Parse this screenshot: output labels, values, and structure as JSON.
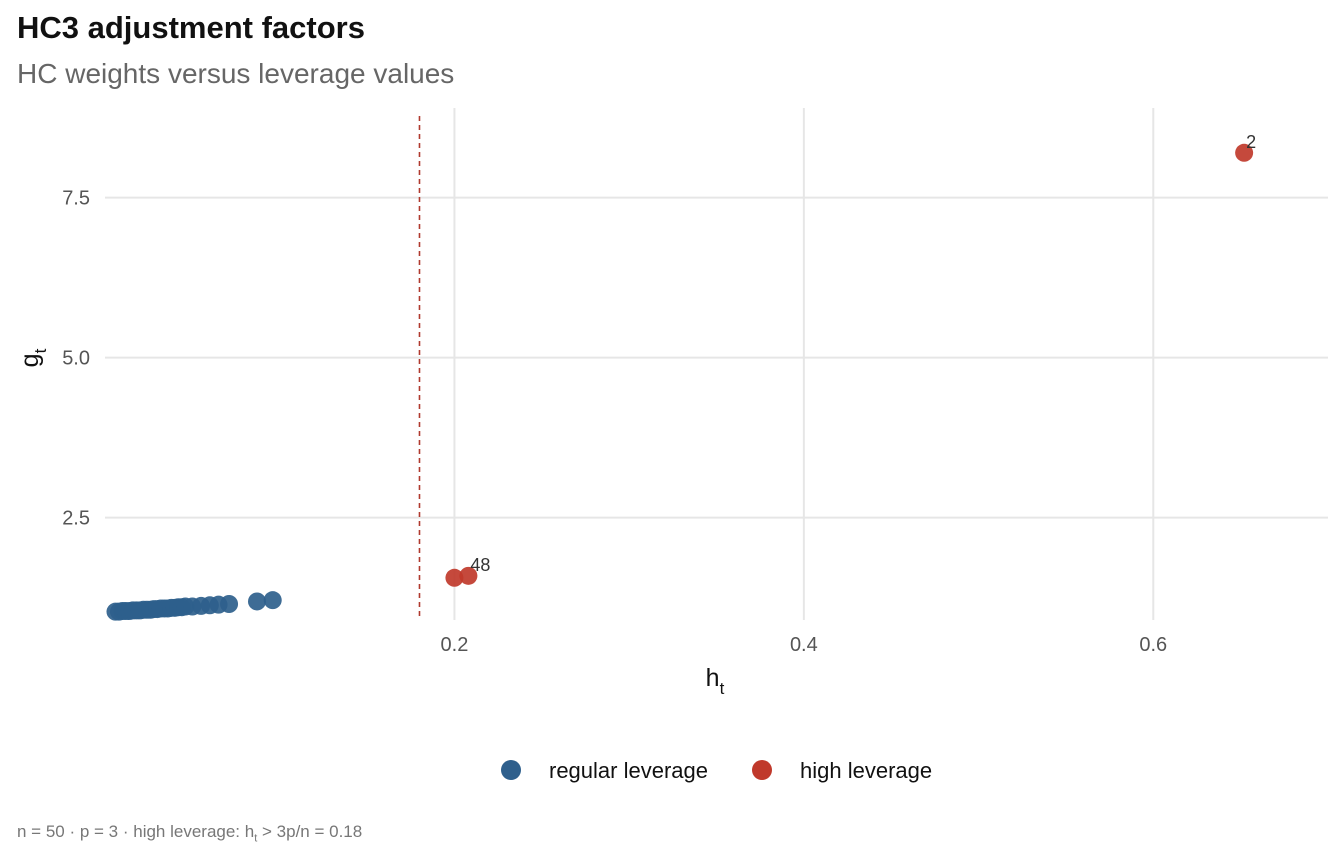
{
  "chart_data": {
    "type": "scatter",
    "title": "HC3 adjustment factors",
    "subtitle": "HC weights versus leverage values",
    "xlabel": {
      "main": "h",
      "sub": "t"
    },
    "ylabel": {
      "main": "g",
      "sub": "t"
    },
    "xlim": [
      0.0,
      0.7
    ],
    "ylim": [
      0.9,
      8.9
    ],
    "x_ticks": [
      0.2,
      0.4,
      0.6
    ],
    "x_tick_labels": [
      "0.2",
      "0.4",
      "0.6"
    ],
    "y_ticks": [
      2.5,
      5.0,
      7.5
    ],
    "y_tick_labels": [
      "2.5",
      "5.0",
      "7.5"
    ],
    "grid": true,
    "threshold": {
      "x": 0.18,
      "color": "#b03a2e",
      "style": "dashed"
    },
    "legend_position": "bottom",
    "series": [
      {
        "name": "regular leverage",
        "color": "#2e5f8c",
        "points": [
          {
            "x": 0.006,
            "y": 1.03
          },
          {
            "x": 0.008,
            "y": 1.03
          },
          {
            "x": 0.01,
            "y": 1.04
          },
          {
            "x": 0.012,
            "y": 1.04
          },
          {
            "x": 0.014,
            "y": 1.04
          },
          {
            "x": 0.016,
            "y": 1.05
          },
          {
            "x": 0.018,
            "y": 1.05
          },
          {
            "x": 0.02,
            "y": 1.05
          },
          {
            "x": 0.022,
            "y": 1.06
          },
          {
            "x": 0.024,
            "y": 1.06
          },
          {
            "x": 0.026,
            "y": 1.06
          },
          {
            "x": 0.028,
            "y": 1.07
          },
          {
            "x": 0.03,
            "y": 1.07
          },
          {
            "x": 0.032,
            "y": 1.08
          },
          {
            "x": 0.034,
            "y": 1.08
          },
          {
            "x": 0.036,
            "y": 1.08
          },
          {
            "x": 0.038,
            "y": 1.09
          },
          {
            "x": 0.04,
            "y": 1.09
          },
          {
            "x": 0.042,
            "y": 1.1
          },
          {
            "x": 0.044,
            "y": 1.1
          },
          {
            "x": 0.046,
            "y": 1.11
          },
          {
            "x": 0.05,
            "y": 1.11
          },
          {
            "x": 0.055,
            "y": 1.12
          },
          {
            "x": 0.06,
            "y": 1.13
          },
          {
            "x": 0.065,
            "y": 1.14
          },
          {
            "x": 0.071,
            "y": 1.15
          },
          {
            "x": 0.087,
            "y": 1.19
          },
          {
            "x": 0.096,
            "y": 1.21
          }
        ]
      },
      {
        "name": "high leverage",
        "color": "#c0392b",
        "points": [
          {
            "x": 0.2,
            "y": 1.56
          },
          {
            "x": 0.208,
            "y": 1.59,
            "label": "48"
          },
          {
            "x": 0.652,
            "y": 8.2,
            "label": "2"
          }
        ]
      }
    ]
  },
  "caption": {
    "part1": "n = 50  ·  p = 3  ·  high leverage: h",
    "sub": "t",
    "part2": " > 3p/n = 0.18"
  }
}
